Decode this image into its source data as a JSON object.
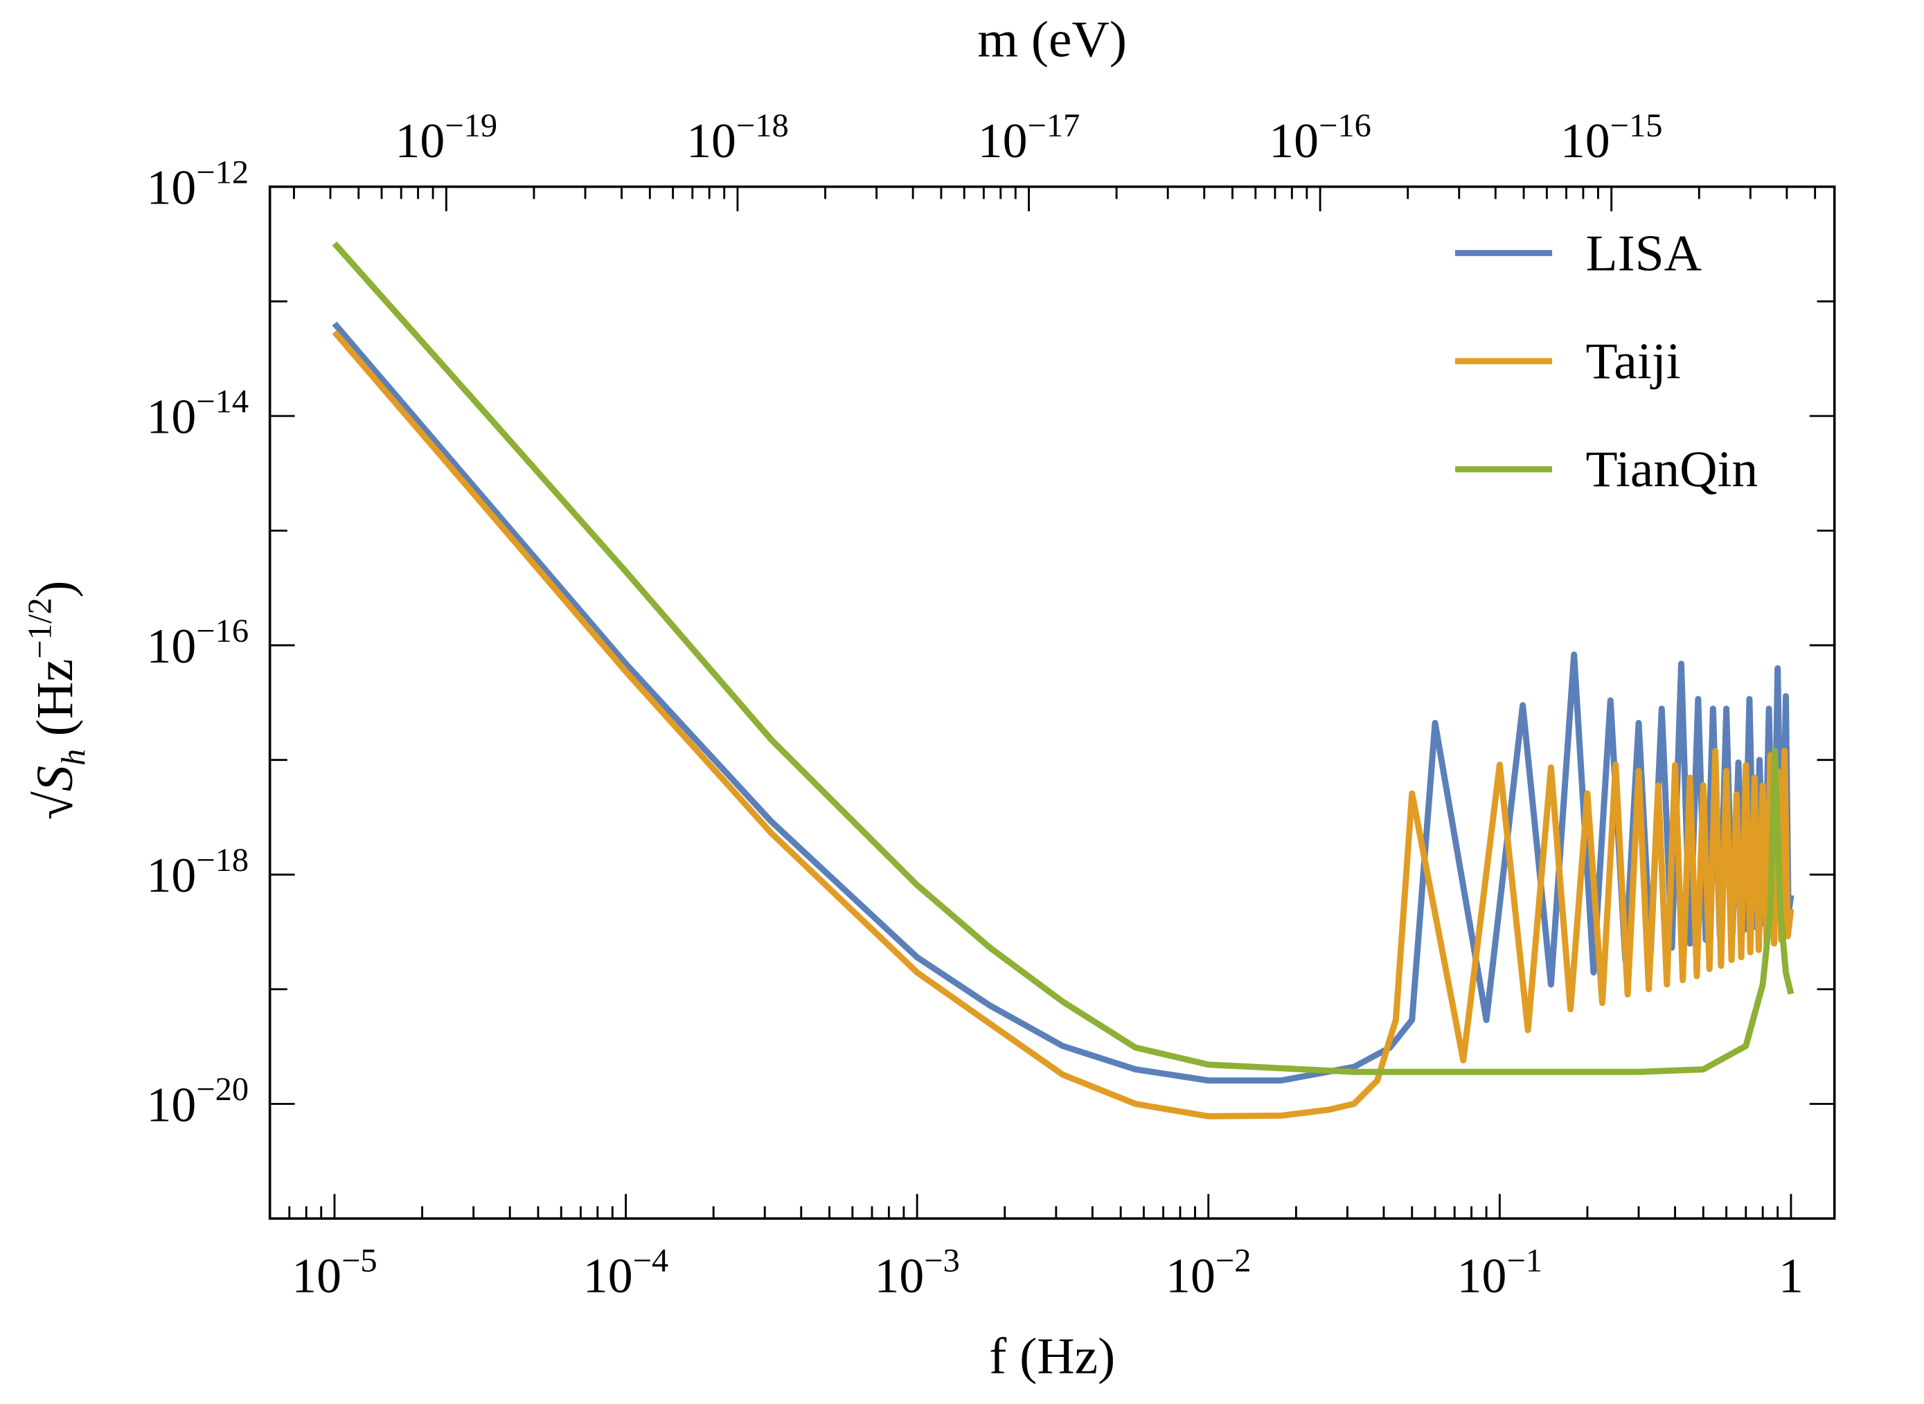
{
  "chart_data": {
    "type": "line",
    "xlabel": "f (Hz)",
    "x2label": "m (eV)",
    "ylabel": "√Sh (Hz−1/2)",
    "xscale": "log",
    "yscale": "log",
    "x2scale": "log",
    "xlim": [
      6e-06,
      1.41
    ],
    "x2lim": [
      2.48e-20,
      5.83e-15
    ],
    "ylim": [
      1e-21,
      1e-12
    ],
    "xticks": [
      {
        "value": 1e-05,
        "label": "10−5"
      },
      {
        "value": 0.0001,
        "label": "10−4"
      },
      {
        "value": 0.001,
        "label": "10−3"
      },
      {
        "value": 0.01,
        "label": "10−2"
      },
      {
        "value": 0.1,
        "label": "10−1"
      },
      1
    ],
    "x2ticks": [
      {
        "value": 1e-19,
        "label": "10−19"
      },
      {
        "value": 1e-18,
        "label": "10−18"
      },
      {
        "value": 1e-17,
        "label": "10−17"
      },
      {
        "value": 1e-16,
        "label": "10−16"
      },
      {
        "value": 1e-15,
        "label": "10−15"
      }
    ],
    "yticks": [
      {
        "value": 1e-20,
        "label": "10−20"
      },
      {
        "value": 1e-18,
        "label": "10−18"
      },
      {
        "value": 1e-16,
        "label": "10−16"
      },
      {
        "value": 1e-14,
        "label": "10−14"
      },
      {
        "value": 1e-12,
        "label": "10−12"
      }
    ],
    "legend": "upper right",
    "series": [
      {
        "name": "LISA",
        "color": "#5b80b9",
        "x": [
          1e-05,
          3.16e-05,
          0.0001,
          0.000316,
          0.001,
          0.00178,
          0.00316,
          0.00562,
          0.01,
          0.0178,
          0.0316,
          0.042,
          0.05,
          0.06,
          0.09,
          0.12,
          0.15,
          0.18,
          0.21,
          0.24,
          0.27,
          0.3,
          0.33,
          0.36,
          0.39,
          0.42,
          0.45,
          0.48,
          0.51,
          0.54,
          0.57,
          0.6,
          0.63,
          0.66,
          0.69,
          0.72,
          0.75,
          0.78,
          0.81,
          0.84,
          0.87,
          0.9,
          0.93,
          0.96,
          0.98,
          1.0
        ],
        "values": [
          6.4e-14,
          2.1e-15,
          6.9e-17,
          2.9e-18,
          1.9e-19,
          7.2e-20,
          3.2e-20,
          2e-20,
          1.6e-20,
          1.6e-20,
          2.1e-20,
          3.1e-20,
          5.4e-20,
          2.1e-17,
          5.4e-20,
          3e-17,
          1.1e-19,
          8.3e-17,
          1.4e-19,
          3.3e-17,
          1.8e-19,
          2.1e-17,
          2.1e-19,
          2.8e-17,
          2.3e-19,
          6.9e-17,
          2.5e-19,
          3.4e-17,
          2.7e-19,
          2.8e-17,
          2.9e-19,
          2.8e-17,
          3.1e-19,
          9.5e-18,
          3.3e-19,
          3.4e-17,
          3.5e-19,
          1e-17,
          3.7e-19,
          2.8e-17,
          3.9e-19,
          6.3e-17,
          4.1e-19,
          3.6e-17,
          4.5e-19,
          6.6e-19
        ]
      },
      {
        "name": "Taiji",
        "color": "#e19c24",
        "x": [
          1e-05,
          3.16e-05,
          0.0001,
          0.000316,
          0.001,
          0.00178,
          0.00316,
          0.00562,
          0.01,
          0.0178,
          0.026,
          0.0316,
          0.038,
          0.044,
          0.05,
          0.075,
          0.1,
          0.125,
          0.15,
          0.175,
          0.2,
          0.225,
          0.25,
          0.275,
          0.3,
          0.325,
          0.35,
          0.375,
          0.4,
          0.425,
          0.45,
          0.475,
          0.5,
          0.525,
          0.55,
          0.575,
          0.6,
          0.625,
          0.65,
          0.675,
          0.7,
          0.725,
          0.75,
          0.775,
          0.8,
          0.825,
          0.85,
          0.875,
          0.9,
          0.925,
          0.95,
          0.975,
          1.0
        ],
        "values": [
          5.4e-14,
          1.8e-15,
          5.9e-17,
          2.3e-18,
          1.4e-19,
          5e-20,
          1.8e-20,
          1e-20,
          7.8e-21,
          7.9e-21,
          8.9e-21,
          1e-20,
          1.6e-20,
          5.4e-20,
          5.1e-18,
          2.4e-20,
          9.1e-18,
          4.4e-20,
          8.6e-18,
          6.7e-20,
          5.1e-18,
          7.6e-20,
          9.1e-18,
          9e-20,
          8e-18,
          1e-19,
          6e-18,
          1.1e-19,
          9e-18,
          1.2e-19,
          7e-18,
          1.3e-19,
          6e-18,
          1.5e-19,
          1.2e-17,
          1.6e-19,
          8e-18,
          1.8e-19,
          5e-18,
          1.9e-19,
          9e-18,
          2.1e-19,
          7e-18,
          2.2e-19,
          6e-18,
          2.4e-19,
          1.1e-17,
          2.5e-19,
          8e-18,
          2.7e-19,
          1.2e-17,
          2.9e-19,
          5e-19
        ]
      },
      {
        "name": "TianQin",
        "color": "#8db035",
        "x": [
          1e-05,
          3.16e-05,
          0.0001,
          0.000316,
          0.001,
          0.00178,
          0.00316,
          0.00562,
          0.01,
          0.0316,
          0.1,
          0.3,
          0.5,
          0.7,
          0.8,
          0.85,
          0.88,
          0.92,
          0.96,
          1.0
        ],
        "values": [
          3.2e-13,
          1.2e-14,
          4.4e-16,
          1.5e-17,
          8.1e-19,
          2.3e-19,
          7.8e-20,
          3.1e-20,
          2.2e-20,
          1.9e-20,
          1.9e-20,
          1.9e-20,
          2e-20,
          3.2e-20,
          1.1e-19,
          4.9e-19,
          1.2e-17,
          4.9e-19,
          1.4e-19,
          9.1e-20
        ]
      }
    ]
  }
}
